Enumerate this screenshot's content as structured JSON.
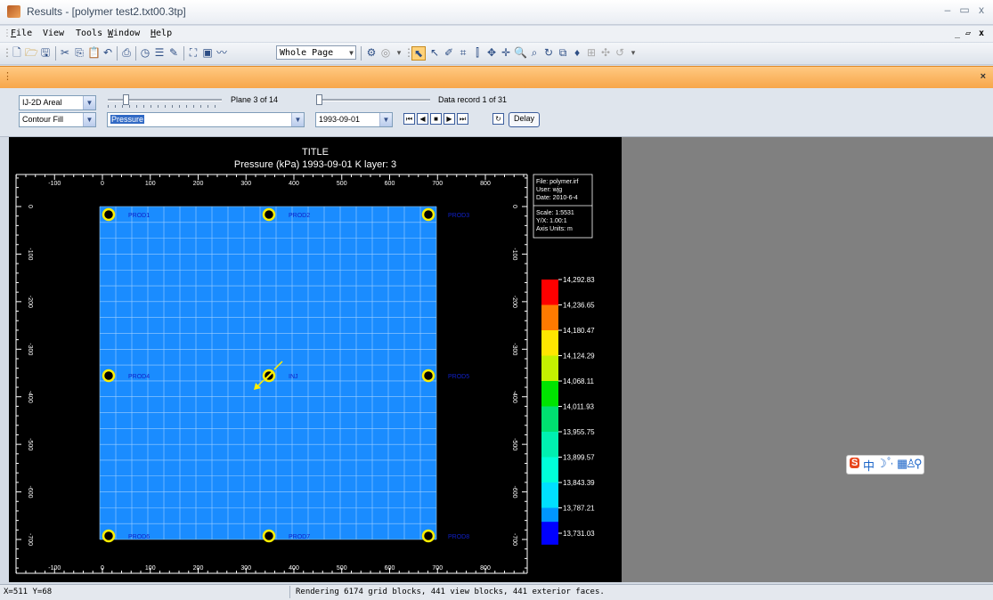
{
  "window": {
    "title": "Results - [polymer test2.txt00.3tp]",
    "minimize": "–",
    "restore": "▭",
    "close": "x",
    "child_min": "_",
    "child_restore": "▱",
    "child_close": "x"
  },
  "menu": [
    {
      "label": "File",
      "key": "F"
    },
    {
      "label": "View",
      "key": ""
    },
    {
      "label": "Tools",
      "key": ""
    },
    {
      "label": "Window",
      "key": "W"
    },
    {
      "label": "Help",
      "key": "H"
    }
  ],
  "toolbar": {
    "zoom_value": "Whole Page"
  },
  "infobar": {
    "close": "×"
  },
  "controls": {
    "view_mode": "IJ-2D Areal",
    "display_type": "Contour Fill",
    "property": "Pressure",
    "date": "1993-09-01",
    "plane_label": "Plane 3 of 14",
    "record_label": "Data record 1 of 31",
    "plane_fraction": 0.14,
    "record_fraction": 0.0,
    "delay_label": "Delay"
  },
  "plot": {
    "title": "TITLE",
    "subtitle": "Pressure (kPa) 1993-09-01     K layer: 3",
    "x_ticks": [
      "-100",
      "0",
      "100",
      "200",
      "300",
      "400",
      "500",
      "600",
      "700",
      "800"
    ],
    "y_ticks": [
      "0",
      "-100",
      "-200",
      "-300",
      "-400",
      "-500",
      "-600",
      "-700"
    ],
    "info_box": [
      "File: polymer.irf",
      "User:  wjg",
      "Date:  2010-6-4"
    ],
    "scale_box": [
      "Scale: 1:5531",
      "Y/X: 1.00:1",
      "Axis Units: m"
    ],
    "grid_color": "#1a8cff",
    "wells": [
      {
        "name": "PROD1",
        "row": 0,
        "col": 0
      },
      {
        "name": "PROD2",
        "row": 0,
        "col": 1
      },
      {
        "name": "PROD3",
        "row": 0,
        "col": 2
      },
      {
        "name": "PROD4",
        "row": 1,
        "col": 0
      },
      {
        "name": "INJ",
        "row": 1,
        "col": 1,
        "injector": true
      },
      {
        "name": "PROD5",
        "row": 1,
        "col": 2
      },
      {
        "name": "PROD6",
        "row": 2,
        "col": 0
      },
      {
        "name": "PROD7",
        "row": 2,
        "col": 1
      },
      {
        "name": "PROD8",
        "row": 2,
        "col": 2
      }
    ],
    "legend": {
      "values": [
        "14,292.83",
        "14,236.65",
        "14,180.47",
        "14,124.29",
        "14,068.11",
        "14,011.93",
        "13,955.75",
        "13,899.57",
        "13,843.39",
        "13,787.21",
        "13,731.03"
      ],
      "colors": [
        "#ff0000",
        "#ff7a00",
        "#ffe600",
        "#c4f000",
        "#00e400",
        "#00e070",
        "#00f0b0",
        "#00ffd8",
        "#00e0ff",
        "#0096ff",
        "#0000ff"
      ]
    }
  },
  "status": {
    "coords": "X=511 Y=68",
    "message": "Rendering 6174 grid blocks, 441 view blocks, 441 exterior faces."
  },
  "ime": [
    "S",
    "中",
    "☽",
    "°,",
    "▦",
    "♙",
    "⚲"
  ]
}
